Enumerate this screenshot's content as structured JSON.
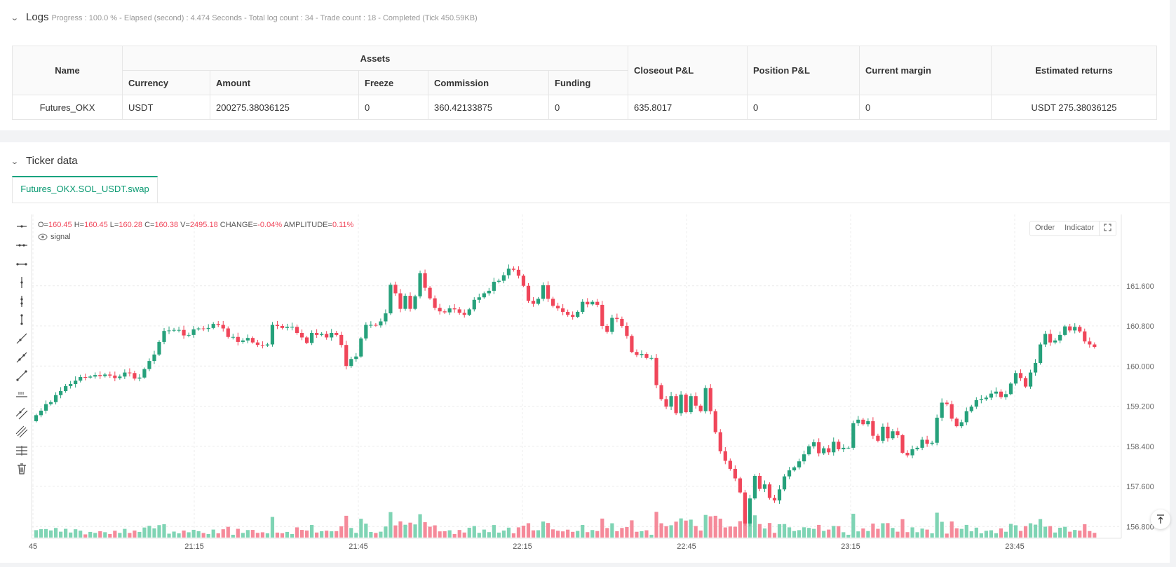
{
  "logs": {
    "title": "Logs",
    "progress": "Progress : 100.0 % - Elapsed (second) : 4.474  Seconds - Total log count : 34 - Trade count : 18 - Completed (Tick 450.59KB)"
  },
  "assets_table": {
    "headers": {
      "name": "Name",
      "assets": "Assets",
      "currency": "Currency",
      "amount": "Amount",
      "freeze": "Freeze",
      "commission": "Commission",
      "funding": "Funding",
      "closeout_pl": "Closeout P&L",
      "position_pl": "Position P&L",
      "current_margin": "Current margin",
      "estimated_returns": "Estimated returns"
    },
    "row": {
      "name": "Futures_OKX",
      "currency": "USDT",
      "amount": "200275.38036125",
      "freeze": "0",
      "commission": "360.42133875",
      "funding": "0",
      "closeout_pl": "635.8017",
      "position_pl": "0",
      "current_margin": "0",
      "estimated_returns": "USDT 275.38036125"
    }
  },
  "ticker": {
    "title": "Ticker data",
    "tab_label": "Futures_OKX.SOL_USDT.swap"
  },
  "legend": {
    "o_label": "O=",
    "o": "160.45",
    "h_label": "H=",
    "h": "160.45",
    "l_label": "L=",
    "l": "160.28",
    "c_label": "C=",
    "c": "160.38",
    "v_label": "V=",
    "v": "2495.18",
    "change_label": "CHANGE=",
    "change": "-0.04%",
    "amp_label": "AMPLITUDE=",
    "amp": "0.11%",
    "signal": "signal"
  },
  "chart_buttons": {
    "order": "Order",
    "indicator": "Indicator"
  },
  "toolbar_icons": [
    "horizontal-ray-icon",
    "horizontal-line-icon",
    "horizontal-segment-icon",
    "vertical-ray-icon",
    "vertical-line-icon",
    "vertical-segment-icon",
    "ray-icon",
    "extended-line-icon",
    "segment-icon",
    "price-line-icon",
    "parallel-channel-icon",
    "fibonacci-icon",
    "price-channel-icon",
    "trash-icon"
  ],
  "colors": {
    "up": "#26a17b",
    "down": "#f0465a",
    "up_volume": "#7fd4b4",
    "down_volume": "#f58a9a",
    "accent": "#14a37f"
  },
  "chart_data": {
    "type": "candlestick",
    "x_ticks": [
      "45",
      "21:15",
      "21:45",
      "22:15",
      "22:45",
      "23:15",
      "23:45"
    ],
    "y_ticks": [
      161.6,
      160.8,
      160.0,
      159.2,
      158.4,
      157.6,
      156.8
    ],
    "ylim": [
      156.75,
      162.3
    ],
    "grid": true,
    "close_series": [
      159.02,
      159.11,
      159.24,
      159.28,
      159.42,
      159.5,
      159.6,
      159.64,
      159.71,
      159.78,
      159.77,
      159.79,
      159.82,
      159.8,
      159.83,
      159.81,
      159.76,
      159.79,
      159.87,
      159.86,
      159.75,
      159.77,
      159.94,
      160.1,
      160.23,
      160.48,
      160.7,
      160.71,
      160.72,
      160.72,
      160.61,
      160.62,
      160.73,
      160.75,
      160.74,
      160.76,
      160.84,
      160.82,
      160.75,
      160.58,
      160.58,
      160.48,
      160.51,
      160.56,
      160.47,
      160.42,
      160.41,
      160.43,
      160.82,
      160.8,
      160.76,
      160.78,
      160.78,
      160.66,
      160.57,
      160.46,
      160.66,
      160.62,
      160.64,
      160.57,
      160.66,
      160.62,
      160.42,
      160.0,
      160.14,
      160.19,
      160.55,
      160.82,
      160.82,
      160.81,
      160.89,
      161.05,
      161.62,
      161.45,
      161.14,
      161.4,
      161.14,
      161.39,
      161.85,
      161.56,
      161.35,
      161.16,
      161.09,
      161.07,
      161.15,
      161.13,
      161.06,
      161.02,
      161.13,
      161.32,
      161.37,
      161.45,
      161.5,
      161.68,
      161.7,
      161.81,
      161.94,
      161.92,
      161.8,
      161.6,
      161.3,
      161.24,
      161.34,
      161.61,
      161.34,
      161.2,
      161.15,
      161.08,
      161.02,
      160.98,
      161.08,
      161.28,
      161.23,
      161.28,
      161.22,
      160.8,
      160.68,
      160.96,
      160.94,
      160.8,
      160.6,
      160.28,
      160.22,
      160.24,
      160.16,
      160.16,
      159.62,
      159.34,
      159.19,
      159.4,
      159.06,
      159.43,
      159.08,
      159.4,
      159.21,
      159.1,
      159.56,
      159.1,
      158.68,
      158.3,
      158.11,
      157.95,
      157.76,
      157.48,
      156.86,
      157.36,
      157.81,
      157.55,
      157.64,
      157.37,
      157.32,
      157.54,
      157.8,
      157.92,
      157.98,
      158.1,
      158.24,
      158.4,
      158.48,
      158.26,
      158.36,
      158.28,
      158.49,
      158.34,
      158.37,
      158.37,
      158.86,
      158.93,
      158.84,
      158.9,
      158.61,
      158.51,
      158.79,
      158.56,
      158.7,
      158.62,
      158.27,
      158.22,
      158.34,
      158.37,
      158.53,
      158.45,
      158.47,
      158.97,
      159.27,
      159.24,
      158.95,
      158.8,
      158.88,
      159.1,
      159.19,
      159.32,
      159.34,
      159.37,
      159.45,
      159.49,
      159.38,
      159.44,
      159.65,
      159.86,
      159.76,
      159.59,
      159.87,
      160.06,
      160.43,
      160.64,
      160.47,
      160.51,
      160.62,
      160.79,
      160.71,
      160.78,
      160.69,
      160.49,
      160.43,
      160.38
    ]
  }
}
